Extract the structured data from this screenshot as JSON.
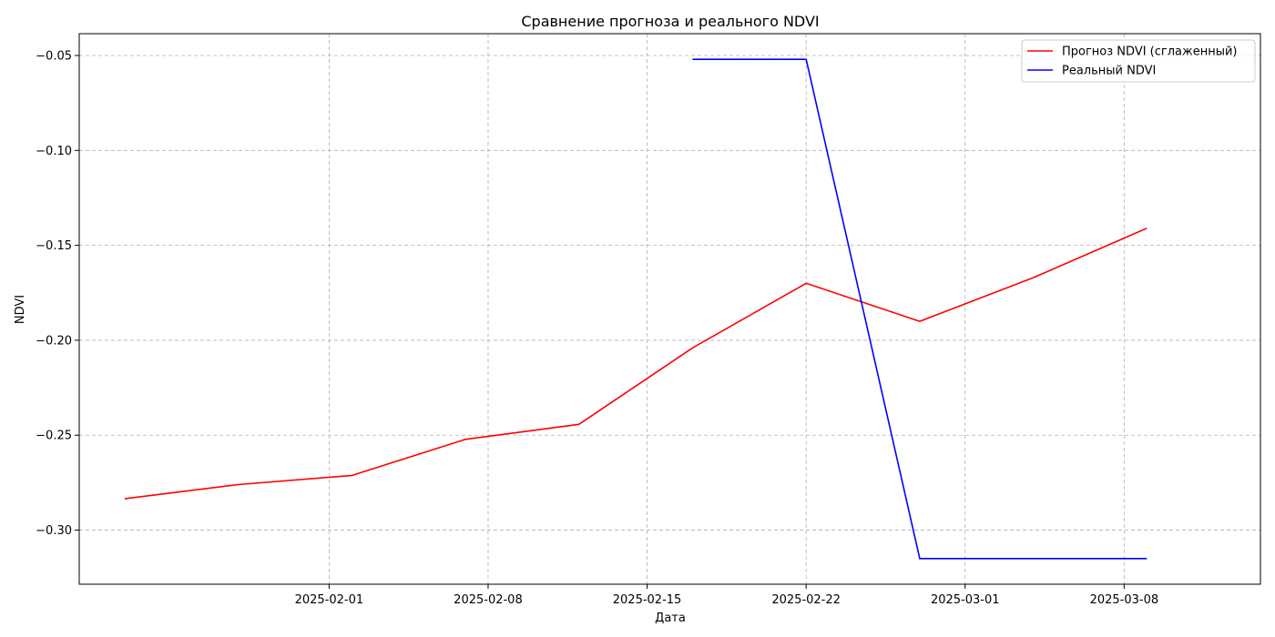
{
  "chart_data": {
    "type": "line",
    "title": "Сравнение прогноза и реального NDVI",
    "xlabel": "Дата",
    "ylabel": "NDVI",
    "x_axis_type": "date",
    "xlim": [
      "2025-01-21",
      "2025-03-14"
    ],
    "ylim": [
      -0.3285,
      -0.0385
    ],
    "x_ticks": [
      "2025-02-01",
      "2025-02-08",
      "2025-02-15",
      "2025-02-22",
      "2025-03-01",
      "2025-03-08"
    ],
    "y_ticks": [
      -0.3,
      -0.25,
      -0.2,
      -0.15,
      -0.1,
      -0.05
    ],
    "y_tick_labels": [
      "−0.30",
      "−0.25",
      "−0.20",
      "−0.15",
      "−0.10",
      "−0.05"
    ],
    "grid": true,
    "legend_position": "top-right",
    "series": [
      {
        "name": "Прогноз NDVI (сглаженный)",
        "color": "#ff0000",
        "x": [
          "2025-01-23",
          "2025-01-28",
          "2025-02-02",
          "2025-02-07",
          "2025-02-12",
          "2025-02-17",
          "2025-02-22",
          "2025-02-27",
          "2025-03-04",
          "2025-03-09"
        ],
        "y": [
          -0.2835,
          -0.276,
          -0.2712,
          -0.2522,
          -0.2443,
          -0.204,
          -0.17,
          -0.19,
          -0.167,
          -0.141
        ]
      },
      {
        "name": "Реальный NDVI",
        "color": "#0000ff",
        "x": [
          "2025-02-17",
          "2025-02-22",
          "2025-02-27",
          "2025-03-04",
          "2025-03-09"
        ],
        "y": [
          -0.052,
          -0.052,
          -0.315,
          -0.315,
          -0.315
        ]
      }
    ]
  }
}
